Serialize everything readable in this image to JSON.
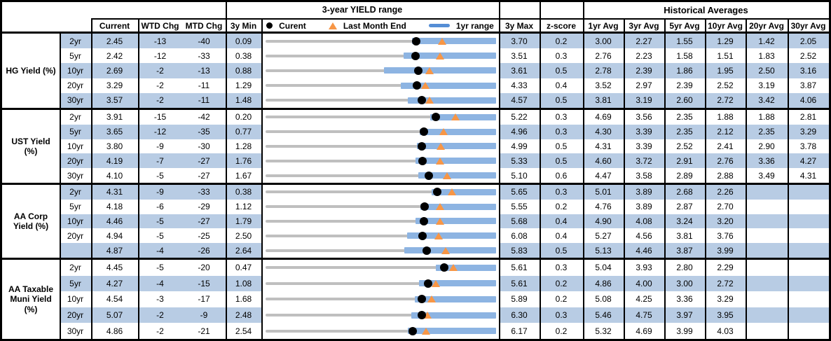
{
  "chart_data": {
    "type": "table",
    "header": {
      "range_title": "3-year YIELD range",
      "historical_title": "Historical Averages",
      "col_current": "Current",
      "col_wtd_chg": "WTD Chg",
      "col_mtd_chg": "MTD Chg",
      "col_3y_min": "3y Min",
      "col_3y_max": "3y Max",
      "col_z_score": "z-score",
      "avg_cols": [
        "1yr Avg",
        "3yr Avg",
        "5yr Avg",
        "10yr Avg",
        "20yr Avg",
        "30yr Avg"
      ],
      "legend_current": "Curent",
      "legend_last_month": "Last Month End",
      "legend_range": "1yr range"
    },
    "colors": {
      "row_stripe": "#B8CCE4",
      "bar_3y_range": "#BFBFBF",
      "bar_1y_range": "#8DB4E2",
      "legend_bar": "#558ED5",
      "last_month_marker": "#F79646",
      "current_marker": "#000000",
      "border": "#000000"
    },
    "groups": [
      {
        "label": "HG Yield (%)",
        "rows": [
          {
            "tenor": "2yr",
            "current": "2.45",
            "wtd": "-13",
            "mtd": "-40",
            "min": "0.09",
            "max": "3.70",
            "z": "0.2",
            "avgs": [
              "3.00",
              "2.27",
              "1.55",
              "1.29",
              "1.42",
              "2.05"
            ],
            "lme": 2.85,
            "lo1y": 2.38
          },
          {
            "tenor": "5yr",
            "current": "2.42",
            "wtd": "-12",
            "mtd": "-33",
            "min": "0.38",
            "max": "3.51",
            "z": "0.3",
            "avgs": [
              "2.76",
              "2.23",
              "1.58",
              "1.51",
              "1.83",
              "2.52"
            ],
            "lme": 2.75,
            "lo1y": 2.25
          },
          {
            "tenor": "10yr",
            "current": "2.69",
            "wtd": "-2",
            "mtd": "-13",
            "min": "0.88",
            "max": "3.61",
            "z": "0.5",
            "avgs": [
              "2.78",
              "2.39",
              "1.86",
              "1.95",
              "2.50",
              "3.16"
            ],
            "lme": 2.82,
            "lo1y": 2.28
          },
          {
            "tenor": "20yr",
            "current": "3.29",
            "wtd": "-2",
            "mtd": "-11",
            "min": "1.29",
            "max": "4.33",
            "z": "0.4",
            "avgs": [
              "3.52",
              "2.97",
              "2.39",
              "2.52",
              "3.19",
              "3.87"
            ],
            "lme": 3.4,
            "lo1y": 3.07
          },
          {
            "tenor": "30yr",
            "current": "3.57",
            "wtd": "-2",
            "mtd": "-11",
            "min": "1.48",
            "max": "4.57",
            "z": "0.5",
            "avgs": [
              "3.81",
              "3.19",
              "2.60",
              "2.72",
              "3.42",
              "4.06"
            ],
            "lme": 3.68,
            "lo1y": 3.39
          }
        ]
      },
      {
        "label": "UST Yield (%)",
        "rows": [
          {
            "tenor": "2yr",
            "current": "3.91",
            "wtd": "-15",
            "mtd": "-42",
            "min": "0.20",
            "max": "5.22",
            "z": "0.3",
            "avgs": [
              "4.69",
              "3.56",
              "2.35",
              "1.88",
              "1.88",
              "2.81"
            ],
            "lme": 4.33,
            "lo1y": 3.79
          },
          {
            "tenor": "5yr",
            "current": "3.65",
            "wtd": "-12",
            "mtd": "-35",
            "min": "0.77",
            "max": "4.96",
            "z": "0.3",
            "avgs": [
              "4.30",
              "3.39",
              "2.35",
              "2.12",
              "2.35",
              "3.29"
            ],
            "lme": 4.0,
            "lo1y": 3.57
          },
          {
            "tenor": "10yr",
            "current": "3.80",
            "wtd": "-9",
            "mtd": "-30",
            "min": "1.28",
            "max": "4.99",
            "z": "0.5",
            "avgs": [
              "4.31",
              "3.39",
              "2.52",
              "2.41",
              "2.90",
              "3.78"
            ],
            "lme": 4.1,
            "lo1y": 3.72
          },
          {
            "tenor": "20yr",
            "current": "4.19",
            "wtd": "-7",
            "mtd": "-27",
            "min": "1.76",
            "max": "5.33",
            "z": "0.5",
            "avgs": [
              "4.60",
              "3.72",
              "2.91",
              "2.76",
              "3.36",
              "4.27"
            ],
            "lme": 4.46,
            "lo1y": 4.08
          },
          {
            "tenor": "30yr",
            "current": "4.10",
            "wtd": "-5",
            "mtd": "-27",
            "min": "1.67",
            "max": "5.10",
            "z": "0.6",
            "avgs": [
              "4.47",
              "3.58",
              "2.89",
              "2.88",
              "3.49",
              "4.31"
            ],
            "lme": 4.37,
            "lo1y": 3.94
          }
        ]
      },
      {
        "label": "AA Corp Yield (%)",
        "rows": [
          {
            "tenor": "2yr",
            "current": "4.31",
            "wtd": "-9",
            "mtd": "-33",
            "min": "0.38",
            "max": "5.65",
            "z": "0.3",
            "avgs": [
              "5.01",
              "3.89",
              "2.68",
              "2.26",
              "",
              ""
            ],
            "lme": 4.64,
            "lo1y": 4.18
          },
          {
            "tenor": "5yr",
            "current": "4.18",
            "wtd": "-6",
            "mtd": "-29",
            "min": "1.12",
            "max": "5.55",
            "z": "0.2",
            "avgs": [
              "4.76",
              "3.89",
              "2.87",
              "2.70",
              "",
              ""
            ],
            "lme": 4.47,
            "lo1y": 4.1
          },
          {
            "tenor": "10yr",
            "current": "4.46",
            "wtd": "-5",
            "mtd": "-27",
            "min": "1.79",
            "max": "5.68",
            "z": "0.4",
            "avgs": [
              "4.90",
              "4.08",
              "3.24",
              "3.20",
              "",
              ""
            ],
            "lme": 4.73,
            "lo1y": 4.32
          },
          {
            "tenor": "20yr",
            "current": "4.94",
            "wtd": "-5",
            "mtd": "-25",
            "min": "2.50",
            "max": "6.08",
            "z": "0.4",
            "avgs": [
              "5.27",
              "4.56",
              "3.81",
              "3.76",
              "",
              ""
            ],
            "lme": 5.19,
            "lo1y": 4.7
          },
          {
            "tenor": "",
            "current": "4.87",
            "wtd": "-4",
            "mtd": "-26",
            "min": "2.64",
            "max": "5.83",
            "z": "0.5",
            "avgs": [
              "5.13",
              "4.46",
              "3.87",
              "3.99",
              "",
              ""
            ],
            "lme": 5.13,
            "lo1y": 4.56
          }
        ]
      },
      {
        "label": "AA Taxable Muni Yield (%)",
        "rows": [
          {
            "tenor": "2yr",
            "current": "4.45",
            "wtd": "-5",
            "mtd": "-20",
            "min": "0.47",
            "max": "5.61",
            "z": "0.3",
            "avgs": [
              "5.04",
              "3.93",
              "2.80",
              "2.29",
              "",
              ""
            ],
            "lme": 4.65,
            "lo1y": 4.26
          },
          {
            "tenor": "5yr",
            "current": "4.27",
            "wtd": "-4",
            "mtd": "-15",
            "min": "1.08",
            "max": "5.61",
            "z": "0.2",
            "avgs": [
              "4.86",
              "4.00",
              "3.00",
              "2.72",
              "",
              ""
            ],
            "lme": 4.42,
            "lo1y": 4.1
          },
          {
            "tenor": "10yr",
            "current": "4.54",
            "wtd": "-3",
            "mtd": "-17",
            "min": "1.68",
            "max": "5.89",
            "z": "0.2",
            "avgs": [
              "5.08",
              "4.25",
              "3.36",
              "3.29",
              "",
              ""
            ],
            "lme": 4.71,
            "lo1y": 4.4
          },
          {
            "tenor": "20yr",
            "current": "5.07",
            "wtd": "-2",
            "mtd": "-9",
            "min": "2.48",
            "max": "6.30",
            "z": "0.3",
            "avgs": [
              "5.46",
              "4.75",
              "3.97",
              "3.95",
              "",
              ""
            ],
            "lme": 5.16,
            "lo1y": 4.89
          },
          {
            "tenor": "30yr",
            "current": "4.86",
            "wtd": "-2",
            "mtd": "-21",
            "min": "2.54",
            "max": "6.17",
            "z": "0.2",
            "avgs": [
              "5.32",
              "4.69",
              "3.99",
              "4.03",
              "",
              ""
            ],
            "lme": 5.07,
            "lo1y": 4.78
          }
        ]
      }
    ]
  }
}
